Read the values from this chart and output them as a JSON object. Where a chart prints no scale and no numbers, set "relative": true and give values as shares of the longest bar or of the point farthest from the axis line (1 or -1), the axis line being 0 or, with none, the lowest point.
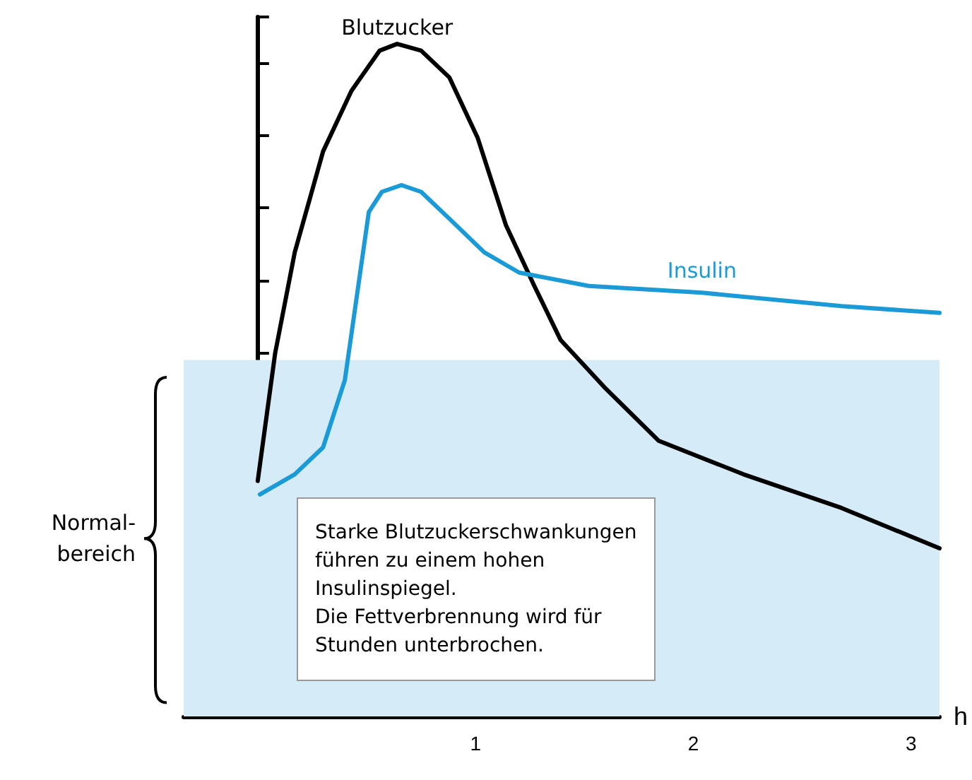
{
  "chart_data": {
    "type": "line",
    "relative": true,
    "xlabel": "h",
    "xlim": [
      -0.34,
      3.13
    ],
    "xticks": [
      1,
      2,
      3
    ],
    "grid": false,
    "legend": false,
    "marker": "none",
    "line_style": "solid",
    "series": [
      {
        "name": "Blutzucker",
        "color": "#000000",
        "x": [
          0,
          0.08,
          0.17,
          0.3,
          0.43,
          0.56,
          0.64,
          0.75,
          0.88,
          1.01,
          1.14,
          1.27,
          1.39,
          1.59,
          1.84,
          2.23,
          2.68,
          3.13
        ],
        "values": [
          0.35,
          0.54,
          0.69,
          0.84,
          0.93,
          0.99,
          1.0,
          0.99,
          0.95,
          0.86,
          0.73,
          0.64,
          0.56,
          0.49,
          0.41,
          0.36,
          0.31,
          0.25
        ]
      },
      {
        "name": "Insulin",
        "color": "#1a9ad6",
        "x": [
          0.01,
          0.17,
          0.3,
          0.4,
          0.51,
          0.57,
          0.66,
          0.75,
          0.88,
          1.04,
          1.2,
          1.52,
          2.04,
          2.68,
          3.13
        ],
        "values": [
          0.33,
          0.36,
          0.4,
          0.5,
          0.75,
          0.78,
          0.79,
          0.78,
          0.74,
          0.69,
          0.66,
          0.64,
          0.63,
          0.61,
          0.6
        ]
      }
    ],
    "bands": [
      {
        "axis": "y",
        "from": 0,
        "to": 0.53,
        "label": "Normal-\nbereich",
        "color": "#d6ebf8"
      }
    ],
    "annotations": [
      "Starke Blutzuckerschwankungen\nführen zu einem hohen\nInsulinspiegel.\nDie Fettverbrennung wird für\nStunden unterbrochen."
    ]
  }
}
